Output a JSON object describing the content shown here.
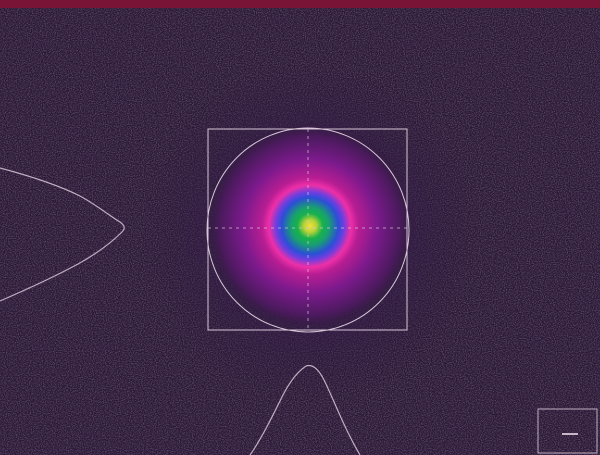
{
  "colors": {
    "top_bar": "#7a1436",
    "background": "#2b1837",
    "overlay_lines": "#d8c6d8",
    "beam_core": "#f2e23a",
    "beam_green": "#18b24a",
    "beam_blue": "#2c4fd6",
    "beam_magenta": "#ee2fa8",
    "beam_purple": "#7b1a8c"
  },
  "icons": {
    "beam_spot": "beam-spot-icon",
    "crosshair": "crosshair-icon",
    "roi_box": "roi-rectangle-icon",
    "ellipse_fit": "ellipse-fit-icon",
    "profile_x": "horizontal-profile-icon",
    "profile_y": "vertical-profile-icon",
    "overview": "overview-window-icon"
  },
  "noise": {
    "visible": true
  }
}
